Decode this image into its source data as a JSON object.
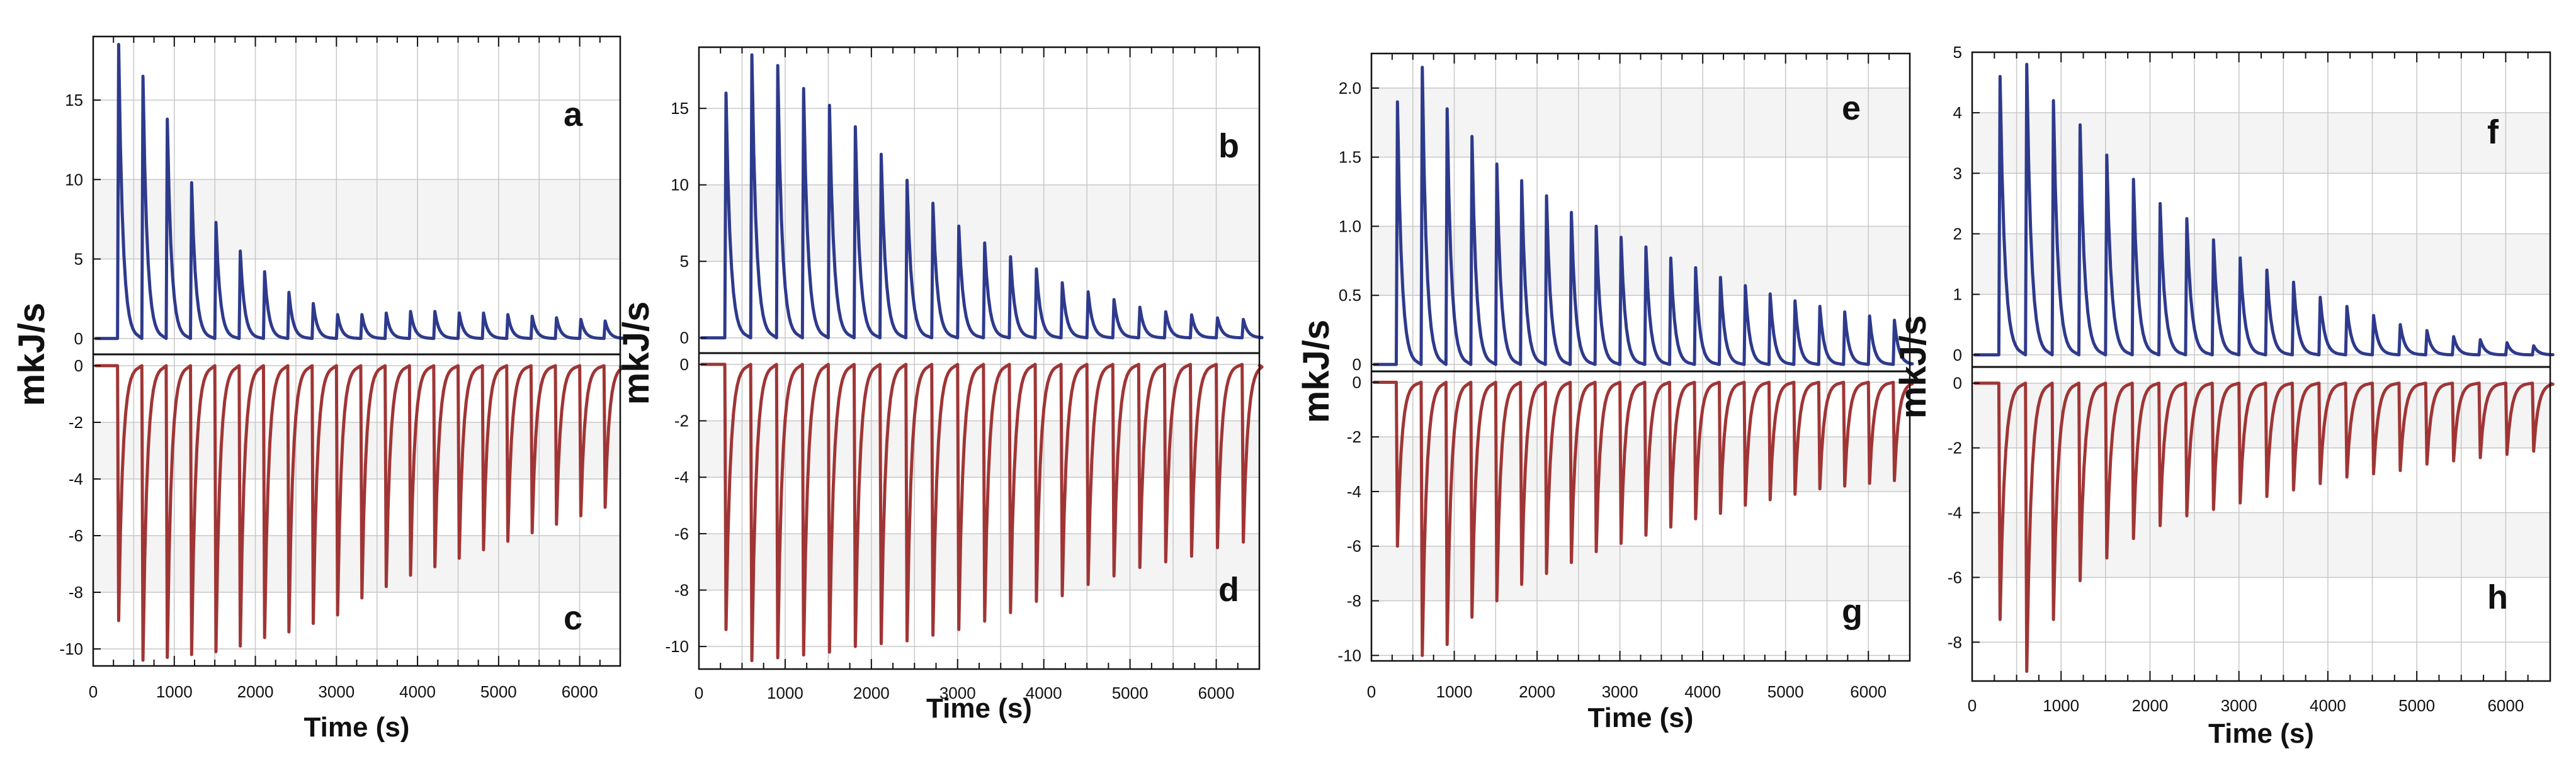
{
  "colors": {
    "top_trace": "#2e3a8c",
    "bottom_trace": "#a03535",
    "band_shade": "#f4f4f4",
    "grid": "#c8c8c8",
    "axis": "#111111"
  },
  "chart_data": [
    {
      "type": "line",
      "group": 1,
      "xlabel": "Time (s)",
      "ylabel": "mkJ/s",
      "x_ticks": [
        0,
        1000,
        2000,
        3000,
        4000,
        5000,
        6000
      ],
      "xlim": [
        0,
        6500
      ],
      "injection_times_s": [
        300,
        600,
        900,
        1200,
        1500,
        1800,
        2100,
        2400,
        2700,
        3000,
        3300,
        3600,
        3900,
        4200,
        4500,
        4800,
        5100,
        5400,
        5700,
        6000,
        6300
      ],
      "top": {
        "panel_label": "a",
        "ylim": [
          -1,
          19
        ],
        "y_ticks": [
          0,
          5,
          10,
          15
        ],
        "baseline": 0,
        "peak_values": [
          18.5,
          16.5,
          13.8,
          9.8,
          7.3,
          5.5,
          4.2,
          2.9,
          2.2,
          1.5,
          1.5,
          1.6,
          1.7,
          1.7,
          1.6,
          1.6,
          1.5,
          1.4,
          1.3,
          1.2,
          1.1
        ]
      },
      "bottom": {
        "panel_label": "c",
        "ylim": [
          -10.6,
          0.4
        ],
        "y_ticks": [
          0,
          -2,
          -4,
          -6,
          -8,
          -10
        ],
        "baseline": 0,
        "peak_values": [
          -9.0,
          -10.4,
          -10.3,
          -10.2,
          -10.1,
          -9.9,
          -9.6,
          -9.4,
          -9.1,
          -8.8,
          -8.2,
          -7.8,
          -7.4,
          -7.1,
          -6.8,
          -6.5,
          -6.2,
          -5.9,
          -5.6,
          -5.3,
          -5.0
        ]
      }
    },
    {
      "type": "line",
      "group": 2,
      "xlabel": "Time (s)",
      "ylabel": "mkJ/s",
      "x_ticks": [
        0,
        1000,
        2000,
        3000,
        4000,
        5000,
        6000
      ],
      "xlim": [
        0,
        6500
      ],
      "injection_times_s": [
        300,
        600,
        900,
        1200,
        1500,
        1800,
        2100,
        2400,
        2700,
        3000,
        3300,
        3600,
        3900,
        4200,
        4500,
        4800,
        5100,
        5400,
        5700,
        6000,
        6300
      ],
      "top": {
        "panel_label": "b",
        "ylim": [
          -1,
          19
        ],
        "y_ticks": [
          0,
          5,
          10,
          15
        ],
        "baseline": 0,
        "peak_values": [
          16.0,
          18.5,
          17.8,
          16.3,
          15.2,
          13.8,
          12.0,
          10.3,
          8.8,
          7.3,
          6.2,
          5.3,
          4.5,
          3.6,
          3.0,
          2.5,
          2.0,
          1.7,
          1.5,
          1.3,
          1.2
        ]
      },
      "bottom": {
        "panel_label": "d",
        "ylim": [
          -10.8,
          0.4
        ],
        "y_ticks": [
          0,
          -2,
          -4,
          -6,
          -8,
          -10
        ],
        "baseline": 0,
        "peak_values": [
          -9.4,
          -10.5,
          -10.4,
          -10.3,
          -10.2,
          -10.0,
          -9.9,
          -9.8,
          -9.6,
          -9.4,
          -9.1,
          -8.8,
          -8.4,
          -8.2,
          -7.8,
          -7.5,
          -7.2,
          -7.0,
          -6.8,
          -6.5,
          -6.3
        ]
      }
    },
    {
      "type": "line",
      "group": 3,
      "xlabel": "Time (s)",
      "ylabel": "mkJ/s",
      "x_ticks": [
        0,
        1000,
        2000,
        3000,
        4000,
        5000,
        6000
      ],
      "xlim": [
        0,
        6500
      ],
      "injection_times_s": [
        300,
        600,
        900,
        1200,
        1500,
        1800,
        2100,
        2400,
        2700,
        3000,
        3300,
        3600,
        3900,
        4200,
        4500,
        4800,
        5100,
        5400,
        5700,
        6000,
        6300
      ],
      "top": {
        "panel_label": "e",
        "ylim": [
          -0.05,
          2.25
        ],
        "y_ticks": [
          0,
          0.5,
          1.0,
          1.5,
          2.0
        ],
        "y_tick_labels": [
          "0",
          "0.5",
          "1.0",
          "1.5",
          "2.0"
        ],
        "baseline": 0,
        "peak_values": [
          1.9,
          2.15,
          1.85,
          1.65,
          1.45,
          1.33,
          1.22,
          1.1,
          1.0,
          0.92,
          0.85,
          0.77,
          0.7,
          0.63,
          0.57,
          0.51,
          0.46,
          0.42,
          0.38,
          0.35,
          0.32
        ]
      },
      "bottom": {
        "panel_label": "g",
        "ylim": [
          -10.2,
          0.4
        ],
        "y_ticks": [
          0,
          -2,
          -4,
          -6,
          -8,
          -10
        ],
        "baseline": 0,
        "peak_values": [
          -6.0,
          -10.0,
          -9.6,
          -8.6,
          -8.0,
          -7.4,
          -7.0,
          -6.6,
          -6.2,
          -5.9,
          -5.6,
          -5.3,
          -5.0,
          -4.8,
          -4.5,
          -4.3,
          -4.1,
          -3.9,
          -3.8,
          -3.7,
          -3.6
        ]
      }
    },
    {
      "type": "line",
      "group": 4,
      "xlabel": "Time (s)",
      "ylabel": "mkJ/s",
      "x_ticks": [
        0,
        1000,
        2000,
        3000,
        4000,
        5000,
        6000
      ],
      "xlim": [
        0,
        6500
      ],
      "injection_times_s": [
        300,
        600,
        900,
        1200,
        1500,
        1800,
        2100,
        2400,
        2700,
        3000,
        3300,
        3600,
        3900,
        4200,
        4500,
        4800,
        5100,
        5400,
        5700,
        6000,
        6300
      ],
      "top": {
        "panel_label": "f",
        "ylim": [
          -0.2,
          5.0
        ],
        "y_ticks": [
          0,
          1,
          2,
          3,
          4,
          5
        ],
        "baseline": 0,
        "peak_values": [
          4.6,
          4.8,
          4.2,
          3.8,
          3.3,
          2.9,
          2.5,
          2.25,
          1.9,
          1.6,
          1.4,
          1.2,
          0.95,
          0.8,
          0.65,
          0.5,
          0.4,
          0.3,
          0.25,
          0.2,
          0.15
        ]
      },
      "bottom": {
        "panel_label": "h",
        "ylim": [
          -9.2,
          0.5
        ],
        "y_ticks": [
          0,
          -2,
          -4,
          -6,
          -8
        ],
        "baseline": 0,
        "peak_values": [
          -7.3,
          -8.9,
          -7.3,
          -6.1,
          -5.4,
          -4.8,
          -4.4,
          -4.1,
          -3.9,
          -3.7,
          -3.5,
          -3.3,
          -3.1,
          -2.9,
          -2.8,
          -2.7,
          -2.5,
          -2.4,
          -2.3,
          -2.2,
          -2.1
        ]
      }
    }
  ]
}
